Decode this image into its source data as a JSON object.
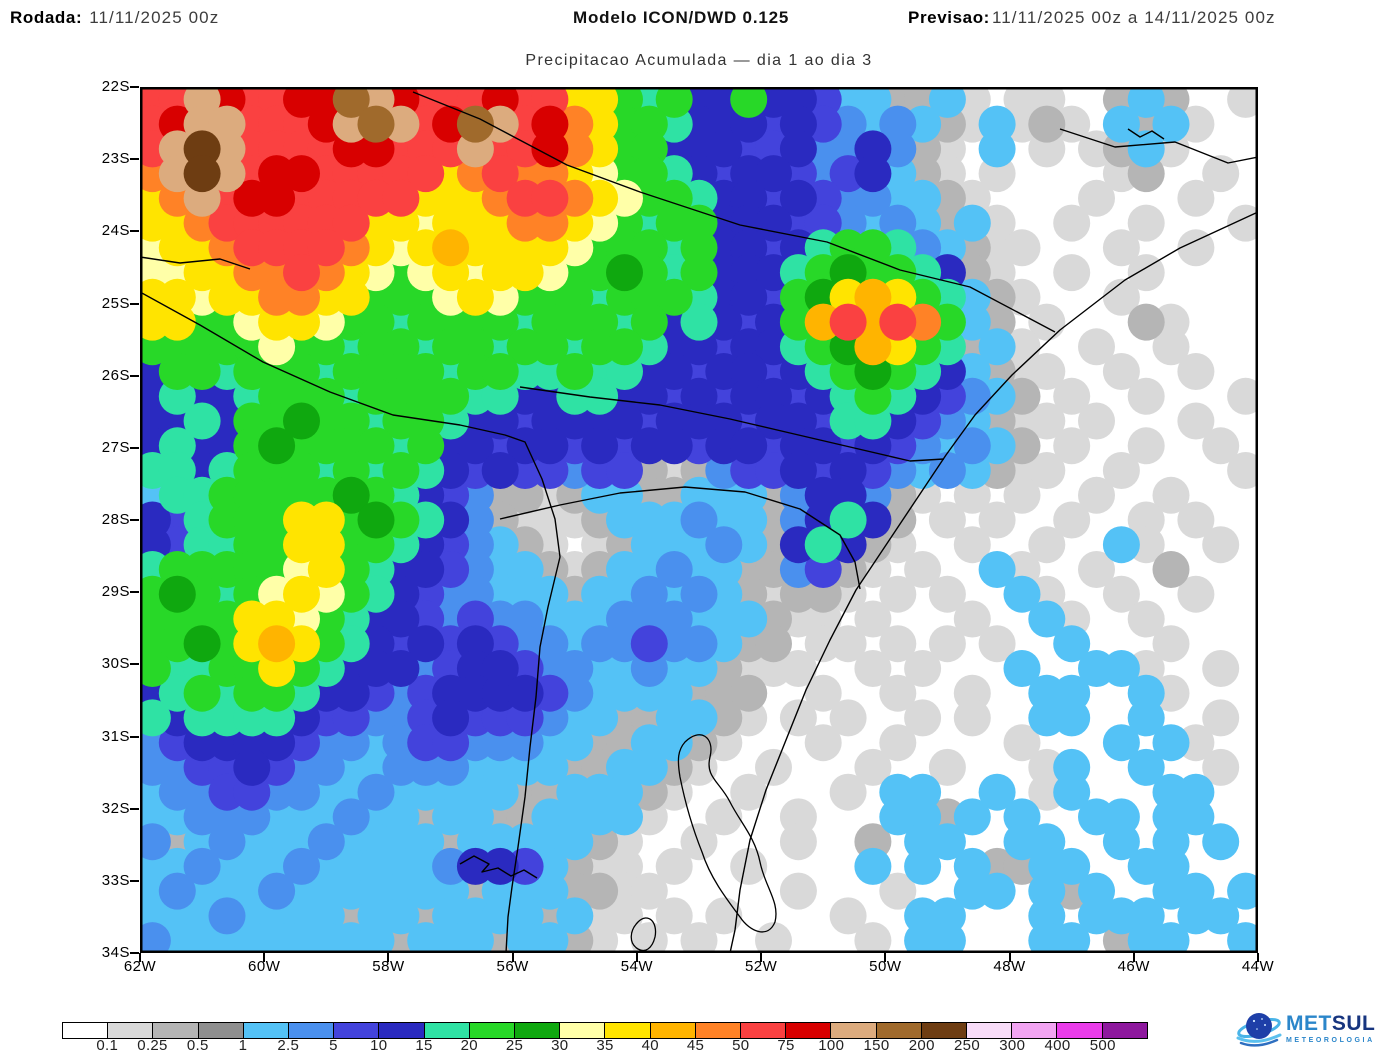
{
  "header": {
    "rodada_label": "Rodada:",
    "rodada_value": "11/11/2025 00z",
    "modelo": "Modelo ICON/DWD 0.125",
    "previsao_label": "Previsao:",
    "previsao_value": "11/11/2025 00z a 14/11/2025 00z"
  },
  "title": "Precipitacao Acumulada — dia 1 ao dia 3",
  "axes": {
    "lat_ticks": [
      "22S",
      "23S",
      "24S",
      "25S",
      "26S",
      "27S",
      "28S",
      "29S",
      "30S",
      "31S",
      "32S",
      "33S",
      "34S"
    ],
    "lon_ticks": [
      "62W",
      "60W",
      "58W",
      "56W",
      "54W",
      "52W",
      "50W",
      "48W",
      "46W",
      "44W"
    ]
  },
  "legend": {
    "values": [
      "0.1",
      "0.25",
      "0.5",
      "1",
      "2.5",
      "5",
      "10",
      "15",
      "20",
      "25",
      "30",
      "35",
      "40",
      "45",
      "50",
      "75",
      "100",
      "150",
      "200",
      "250",
      "300",
      "400",
      "500"
    ],
    "colors": [
      "#ffffff",
      "#d9d9d9",
      "#b5b5b5",
      "#8f8f8f",
      "#54c2f6",
      "#4a90ee",
      "#4343dc",
      "#2a2ac0",
      "#2fe2a4",
      "#28d828",
      "#0fa80f",
      "#ffffa8",
      "#ffe400",
      "#ffb400",
      "#ff8226",
      "#fa4141",
      "#d80000",
      "#dcab7e",
      "#a06a2c",
      "#6e3d12",
      "#f8dcf8",
      "#f2a4f2",
      "#ea3cea",
      "#8e189e"
    ]
  },
  "logo": {
    "met": "MET",
    "sul": "SUL",
    "subtitle": "METEOROLOGIA"
  },
  "map_grid": {
    "cols": 45,
    "rows": 35,
    "order": "0123456789abcdefghij",
    "palette": {
      "0": "#ffffff",
      "1": "#d9d9d9",
      "2": "#b5b5b5",
      "3": "#8f8f8f",
      "4": "#54c2f6",
      "5": "#4a90ee",
      "6": "#4343dc",
      "7": "#2a2ac0",
      "8": "#2fe2a4",
      "9": "#28d828",
      "a": "#0fa80f",
      "b": "#ffffa8",
      "c": "#ffe400",
      "d": "#ffb400",
      "e": "#ff8226",
      "f": "#fa4141",
      "g": "#d80000",
      "h": "#dcab7e",
      "i": "#a06a2c",
      "j": "#6e3d12"
    },
    "cells": [
      "ffhgffggihgfffgffcc98977977644224101100242001",
      "fghhfffghihfgihfgec99877767654542141210424100",
      "fhjhffffggfffhffgec99777667557521040101241000",
      "ehjhfggfffffcefeecb99876776567421010000120010",
      "cehfggfffffccceffecb9987767655442100001000100",
      "cceffffffccbccceecb98997776654542410010010001",
      "bcceffffecbcdccccb999897767899854211000100100",
      "bbcceefecb9bcbccb99a98977789a9987210010010000",
      "ccbcceecc999bcb999899987769acdc98421000100000",
      "cc99bccb9989999899989787679dfdfe9420100021000",
      "99999b998998998998998776778 9adc982410010 01000",
      "799899989999899889887767767 89a98742110010 0100",
      "787789998999988778877676776789876542010010001",
      "778799a99899877677776777677688765421101000100",
      "78779a999989776776767767767767654542010010010",
      "887899989898767665662125667676545421100100001",
      "48899999a98765221244224442577521010100100 1000",
      "768999cc9a98752111244454425787201010010010100",
      "768899cc99876542101244454278721001001004 10010",
      "899999bc98776544212445442256210100410010 02000",
      "9a989bcb98765544424454542122101010041001 00100",
      "9999ccb98776565544455544421101000100410010000",
      "99a9cdc98767676554556554220110101010040001000",
      "98899c98777567765544544211100101000400441 0010",
      "789899877656777765444422200100100100440041000",
      "878888766556766654422442101010010100440 04001",
      "567777655456655544224421000100100001000404100",
      "556676554455544442244210010001001000140040010",
      "455665544544444224442100100010440040140004400",
      "445554445442442244441001001000442404004404400",
      "524544454444244444210010001002044004400404040",
      "445444544444577642110100100004040422440044000",
      "454445444444424442211000001000100440424004404",
      "444544442442444424110101000010044000404440440",
      "544444444424442442101010010001044000440244004"
    ]
  }
}
